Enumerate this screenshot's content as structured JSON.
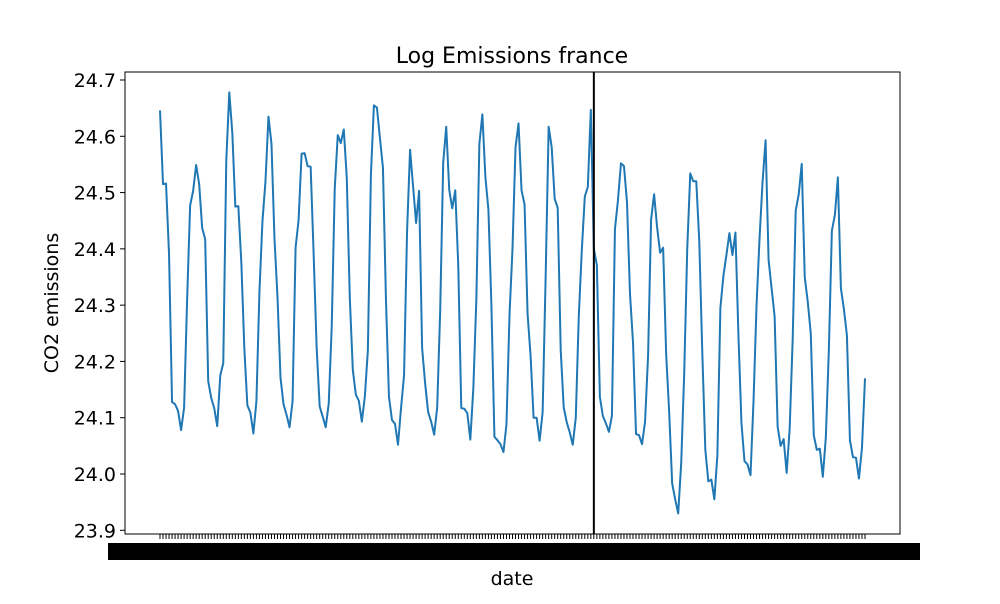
{
  "chart_data": {
    "type": "line",
    "title": "Log Emissions france",
    "xlabel": "date",
    "ylabel": "CO2 emissions",
    "ylim": [
      23.9,
      24.7
    ],
    "yticks": [
      23.9,
      24.0,
      24.1,
      24.2,
      24.3,
      24.4,
      24.5,
      24.6,
      24.7
    ],
    "ytick_labels": [
      "23.9",
      "24.0",
      "24.1",
      "24.2",
      "24.3",
      "24.4",
      "24.5",
      "24.6",
      "24.7"
    ],
    "grid": false,
    "legend": "none",
    "line_color": "#1f77b4",
    "vline_color": "#000000",
    "vline_index": 144,
    "series": [
      {
        "values": [
          24.646,
          24.515,
          24.516,
          24.39,
          24.128,
          24.124,
          24.112,
          24.078,
          24.118,
          24.31,
          24.477,
          24.503,
          24.549,
          24.515,
          24.437,
          24.417,
          24.165,
          24.135,
          24.117,
          24.085,
          24.175,
          24.197,
          24.557,
          24.678,
          24.606,
          24.475,
          24.476,
          24.375,
          24.222,
          24.122,
          24.109,
          24.072,
          24.129,
          24.323,
          24.449,
          24.519,
          24.635,
          24.587,
          24.418,
          24.314,
          24.171,
          24.124,
          24.105,
          24.083,
          24.129,
          24.402,
          24.451,
          24.569,
          24.57,
          24.547,
          24.546,
          24.39,
          24.223,
          24.12,
          24.102,
          24.083,
          24.125,
          24.262,
          24.507,
          24.602,
          24.588,
          24.612,
          24.526,
          24.312,
          24.185,
          24.141,
          24.13,
          24.093,
          24.138,
          24.22,
          24.531,
          24.655,
          24.651,
          24.597,
          24.544,
          24.31,
          24.137,
          24.096,
          24.089,
          24.052,
          24.117,
          24.175,
          24.43,
          24.576,
          24.511,
          24.446,
          24.503,
          24.224,
          24.161,
          24.11,
          24.093,
          24.07,
          24.118,
          24.29,
          24.553,
          24.617,
          24.505,
          24.472,
          24.504,
          24.37,
          24.117,
          24.116,
          24.108,
          24.061,
          24.152,
          24.31,
          24.586,
          24.639,
          24.528,
          24.47,
          24.3,
          24.066,
          24.06,
          24.053,
          24.039,
          24.088,
          24.282,
          24.4,
          24.58,
          24.623,
          24.504,
          24.479,
          24.285,
          24.21,
          24.1,
          24.1,
          24.059,
          24.11,
          24.35,
          24.617,
          24.581,
          24.489,
          24.473,
          24.22,
          24.118,
          24.092,
          24.074,
          24.052,
          24.1,
          24.28,
          24.397,
          24.493,
          24.51,
          24.647,
          24.4,
          24.371,
          24.137,
          24.103,
          24.09,
          24.075,
          24.103,
          24.435,
          24.486,
          24.552,
          24.547,
          24.483,
          24.32,
          24.234,
          24.071,
          24.069,
          24.053,
          24.093,
          24.21,
          24.452,
          24.497,
          24.438,
          24.393,
          24.402,
          24.213,
          24.11,
          23.983,
          23.955,
          23.93,
          24.02,
          24.18,
          24.4,
          24.534,
          24.52,
          24.52,
          24.413,
          24.215,
          24.043,
          23.987,
          23.99,
          23.955,
          24.033,
          24.295,
          24.352,
          24.389,
          24.428,
          24.389,
          24.429,
          24.245,
          24.09,
          24.023,
          24.017,
          23.998,
          24.13,
          24.3,
          24.419,
          24.519,
          24.593,
          24.38,
          24.33,
          24.28,
          24.084,
          24.05,
          24.062,
          24.002,
          24.081,
          24.24,
          24.468,
          24.497,
          24.551,
          24.35,
          24.306,
          24.25,
          24.069,
          24.043,
          24.045,
          23.995,
          24.065,
          24.22,
          24.432,
          24.46,
          24.527,
          24.33,
          24.293,
          24.246,
          24.06,
          24.03,
          24.029,
          23.992,
          24.047,
          24.17
        ]
      }
    ]
  }
}
